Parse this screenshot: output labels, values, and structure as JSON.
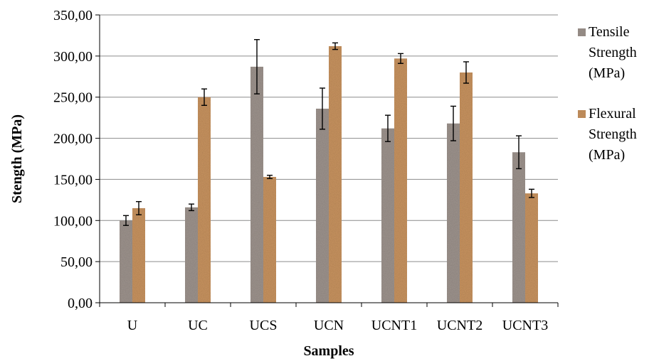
{
  "chart_data": {
    "type": "bar",
    "categories": [
      "U",
      "UC",
      "UCS",
      "UCN",
      "UCNT1",
      "UCNT2",
      "UCNT3"
    ],
    "series": [
      {
        "name": "Tensile Strength (MPa)",
        "legend_lines": [
          "Tensile",
          "Strength",
          "(MPa)"
        ],
        "color": "#9e948e",
        "values": [
          100,
          116,
          287,
          236,
          212,
          218,
          183
        ],
        "errors": [
          6,
          4,
          33,
          25,
          16,
          21,
          20
        ]
      },
      {
        "name": "Flexural Strength (MPa)",
        "legend_lines": [
          "Flexural",
          "Strength",
          "(MPa)"
        ],
        "color": "#c99460",
        "values": [
          115,
          250,
          153,
          312,
          297,
          280,
          133
        ],
        "errors": [
          8,
          10,
          2,
          4,
          6,
          13,
          5
        ]
      }
    ],
    "xlabel": "Samples",
    "ylabel": "Stength (MPa)",
    "ylim": [
      0,
      350
    ],
    "yticks": [
      0,
      50,
      100,
      150,
      200,
      250,
      300,
      350
    ],
    "ytick_labels": [
      "0,00",
      "50,00",
      "100,00",
      "150,00",
      "200,00",
      "250,00",
      "300,00",
      "350,00"
    ],
    "grid": true,
    "legend_position": "right"
  }
}
